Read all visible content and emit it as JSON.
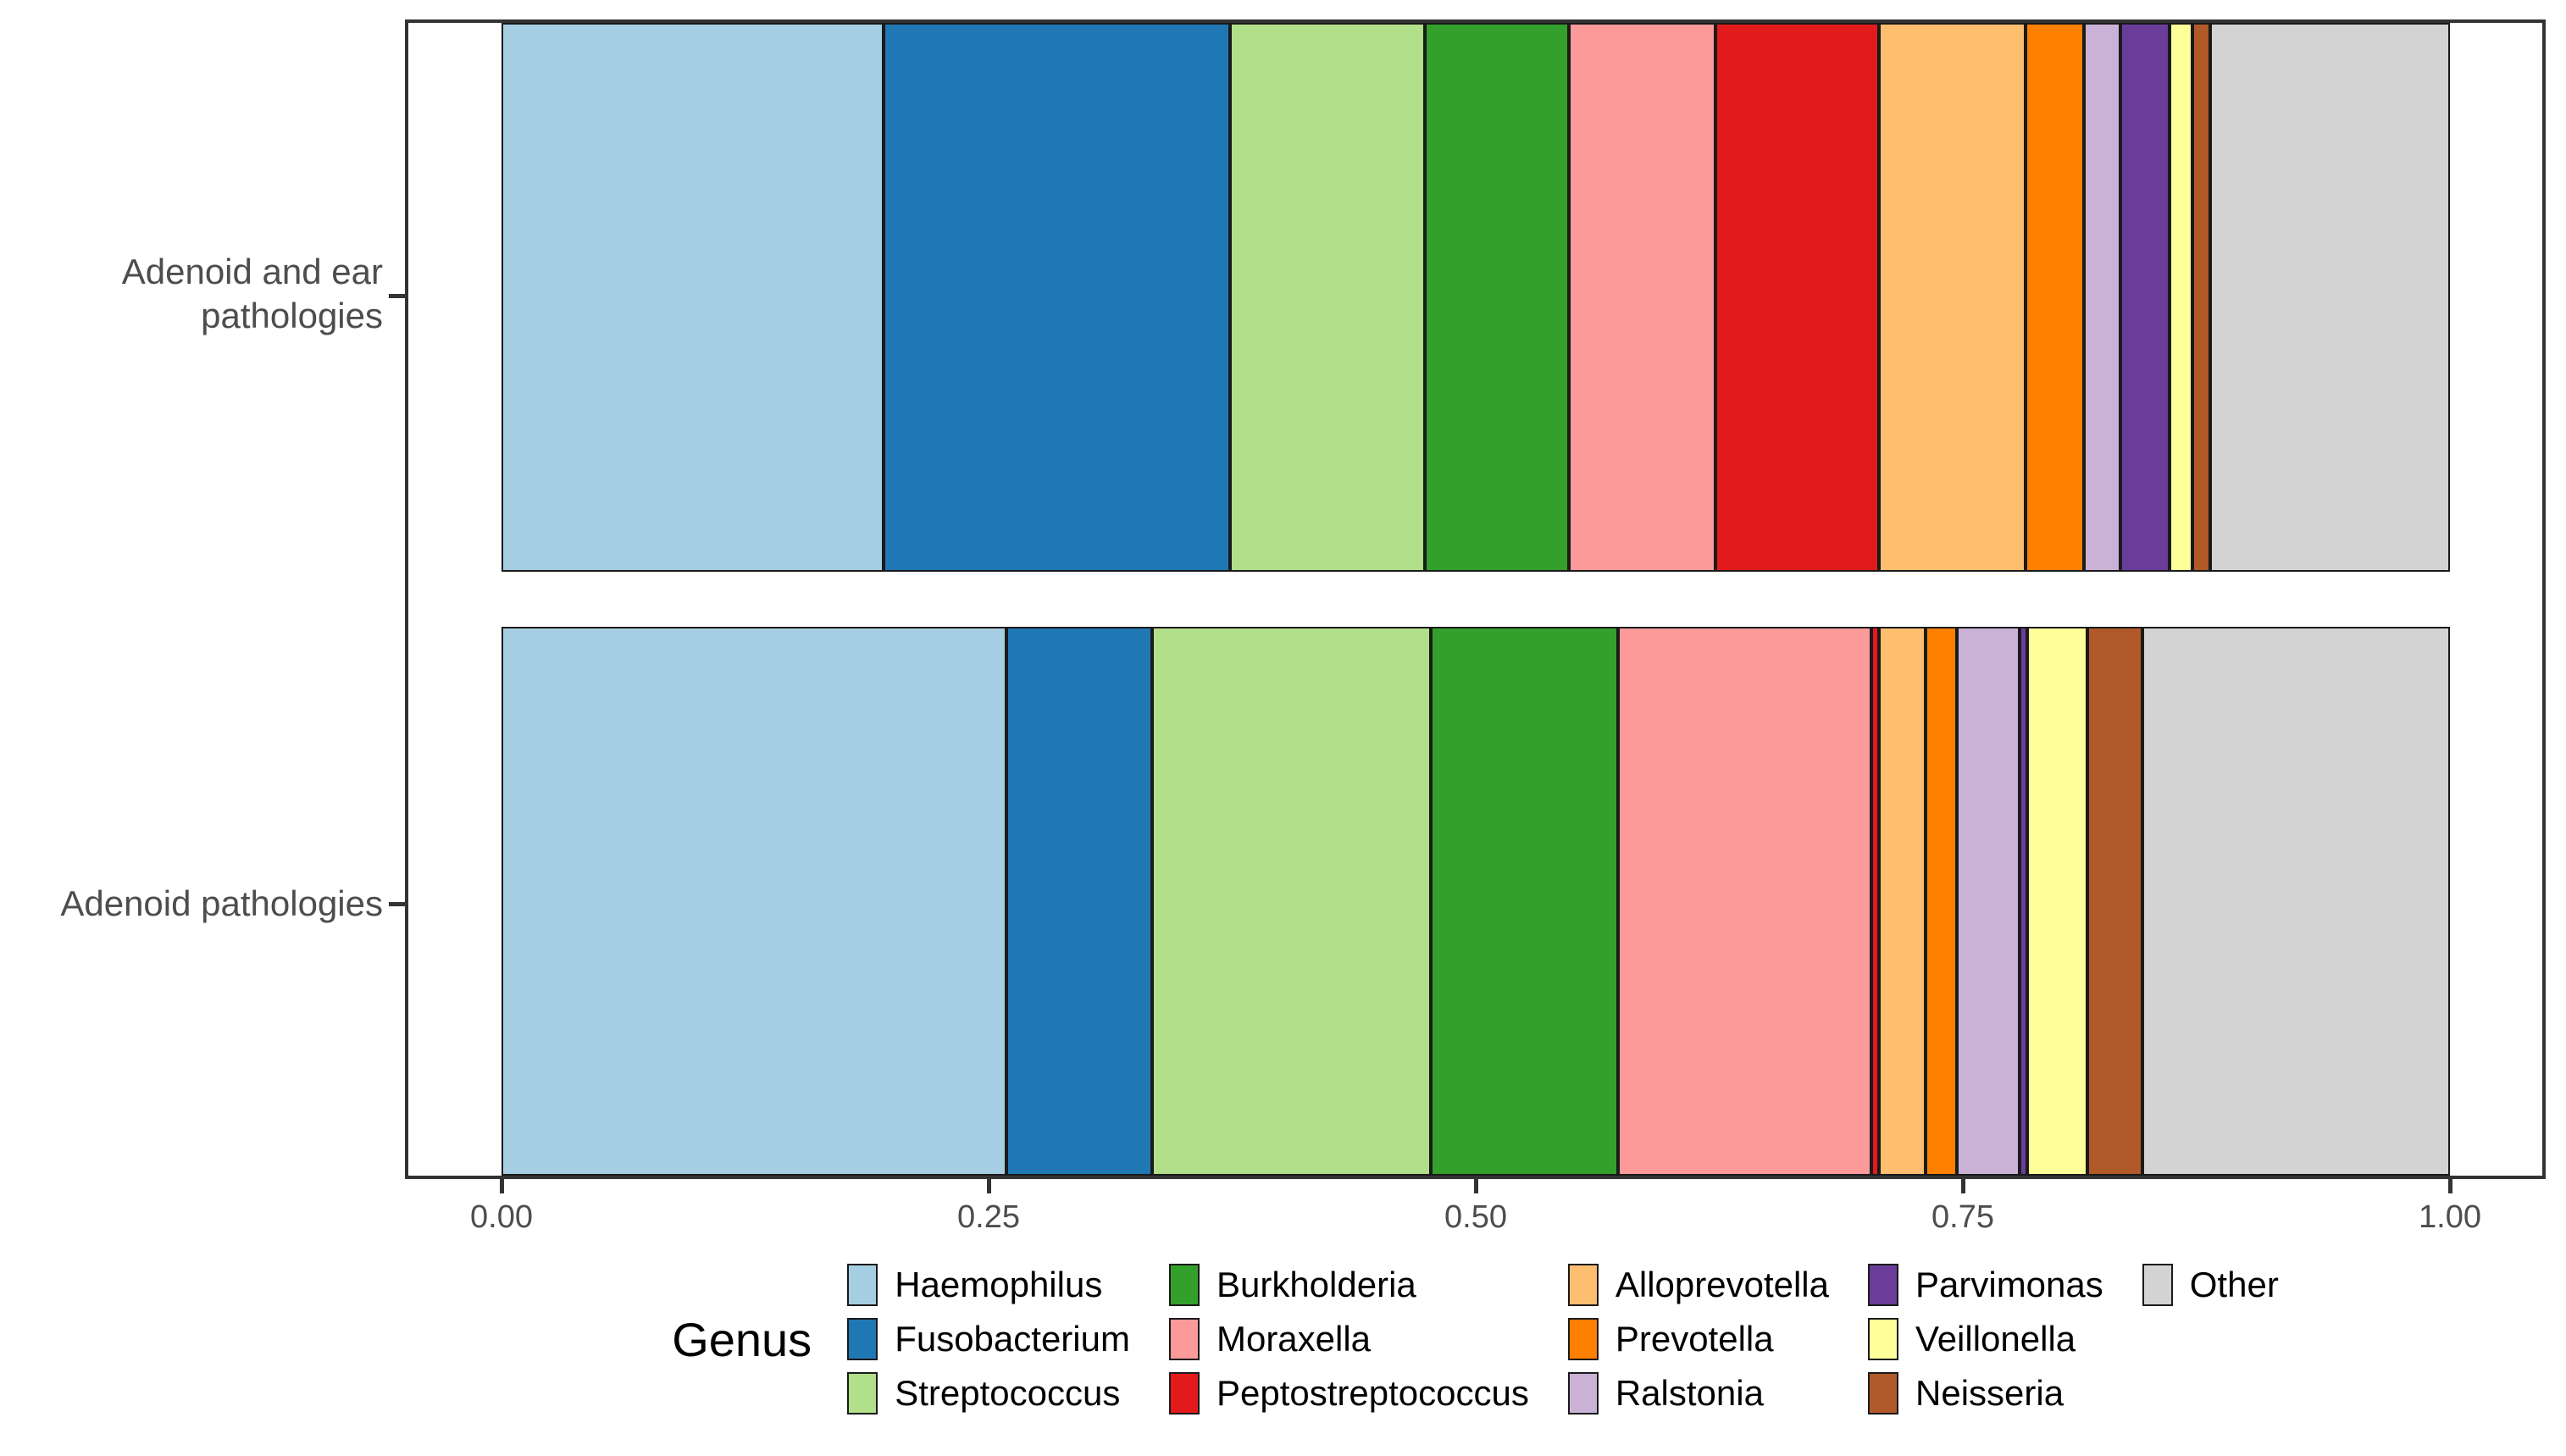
{
  "figure": {
    "background": "#ffffff",
    "panel_border_color": "#333333",
    "axis_text_color": "#4d4d4d",
    "segment_border_color": "#1a1a1a"
  },
  "y_axis": {
    "labels": [
      "Adenoid and ear\npathologies",
      "Adenoid pathologies"
    ]
  },
  "legend": {
    "title": "Genus",
    "position": "bottom",
    "rows_per_column": 3
  },
  "chart_data": {
    "type": "bar",
    "orientation": "horizontal",
    "stacked": true,
    "title": "",
    "xlabel": "",
    "ylabel": "",
    "xlim": [
      0,
      1
    ],
    "x_tick_labels": [
      "0.00",
      "0.25",
      "0.50",
      "0.75",
      "1.00"
    ],
    "grid": false,
    "legend_title": "Genus",
    "legend_position": "bottom",
    "categories": [
      "Adenoid and ear pathologies",
      "Adenoid pathologies"
    ],
    "genera": [
      "Haemophilus",
      "Fusobacterium",
      "Streptococcus",
      "Burkholderia",
      "Moraxella",
      "Peptostreptococcus",
      "Alloprevotella",
      "Prevotella",
      "Ralstonia",
      "Parvimonas",
      "Veillonella",
      "Neisseria",
      "Other"
    ],
    "colors": [
      "#A6CEE3",
      "#1F78B4",
      "#B2DF8A",
      "#33A02C",
      "#FB9A99",
      "#E31A1C",
      "#FDBF6F",
      "#FF7F00",
      "#CAB2D6",
      "#6A3D9A",
      "#FFFF99",
      "#B15928",
      "#D3D3D3"
    ],
    "series": [
      {
        "name": "Adenoid and ear pathologies",
        "values": [
          0.196,
          0.178,
          0.1,
          0.074,
          0.075,
          0.084,
          0.075,
          0.03,
          0.019,
          0.025,
          0.012,
          0.009,
          0.123
        ]
      },
      {
        "name": "Adenoid pathologies",
        "values": [
          0.259,
          0.075,
          0.143,
          0.096,
          0.13,
          0.004,
          0.024,
          0.016,
          0.032,
          0.004,
          0.031,
          0.028,
          0.158
        ]
      }
    ]
  }
}
